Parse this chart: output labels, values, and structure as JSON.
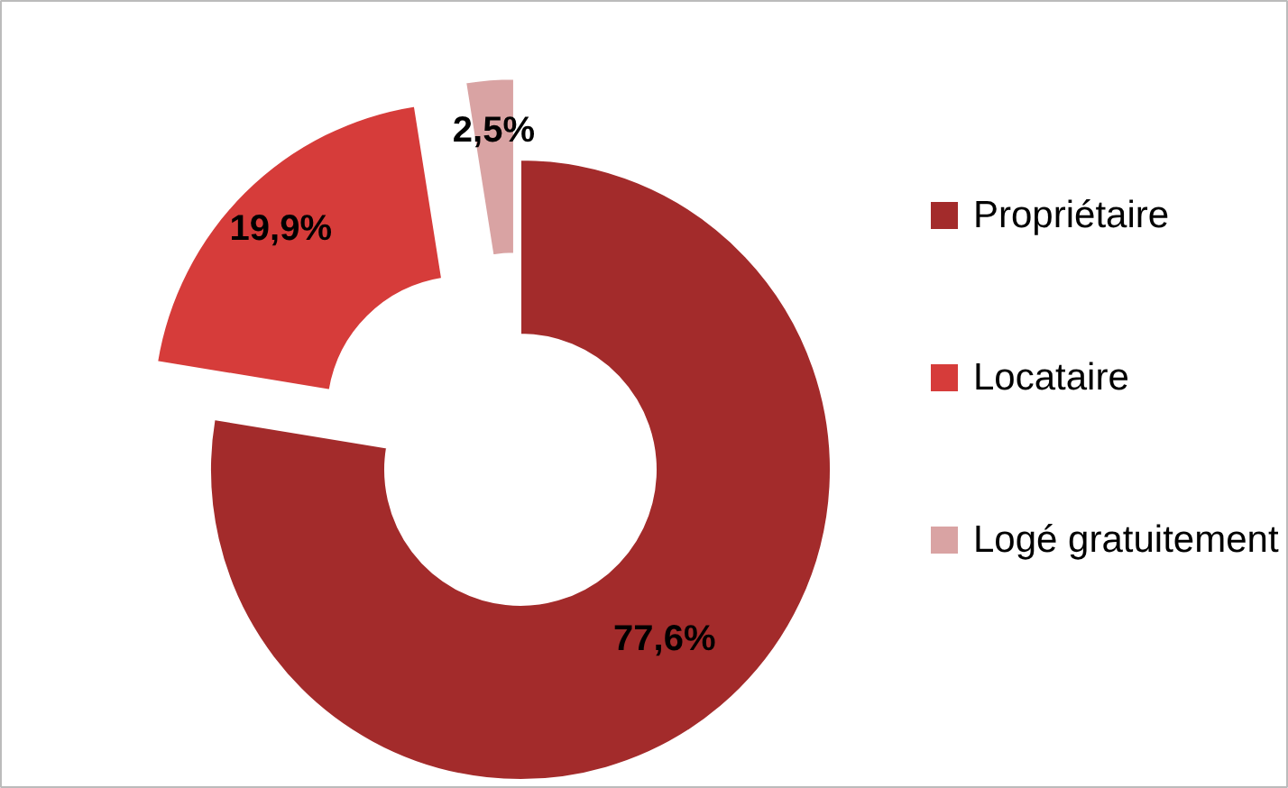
{
  "chart_data": {
    "type": "donut",
    "categories": [
      "Propriétaire",
      "Locataire",
      "Logé gratuitement"
    ],
    "values": [
      77.6,
      19.9,
      2.5
    ],
    "colors": [
      "#a32b2b",
      "#d63c3a",
      "#d9a3a3"
    ],
    "value_labels": [
      "77,6%",
      "19,9%",
      "2,5%"
    ],
    "legend": "right"
  }
}
